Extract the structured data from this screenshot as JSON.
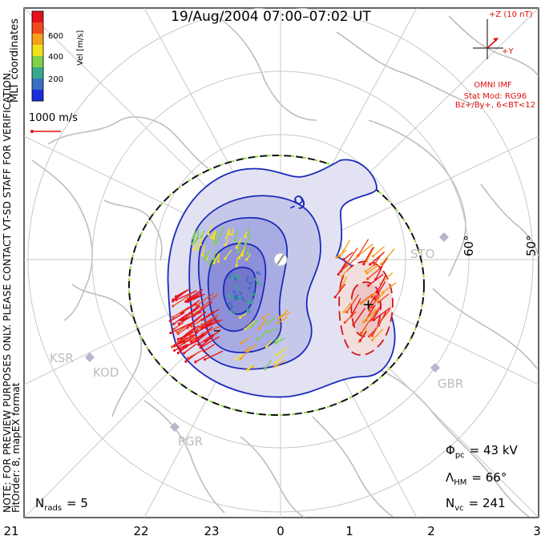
{
  "title": "19/Aug/2004 07:00–07:02 UT",
  "colorbar": {
    "label": "Vel [m/s]",
    "ticks": [
      "600",
      "400",
      "200"
    ],
    "colors": [
      "#e8121c",
      "#f04a1c",
      "#f5a01a",
      "#f2e21b",
      "#7fd14a",
      "#3aa88a",
      "#3a6fc4",
      "#1a2cd8"
    ]
  },
  "coords_label": "MLT coordinates",
  "scale_vector": "1000 m/s",
  "notes": {
    "line1": "NOTE: FOR PREVIEW PURPOSES ONLY. PLEASE CONTACT VT-SD STAFF FOR VERIFICATION.",
    "line2": "FitOrder: 8, mapEX format"
  },
  "imf": {
    "axis_z": "+Z (10 nT)",
    "axis_y": "+Y",
    "source": "OMNI IMF",
    "model": "Stat Mod: RG96",
    "condition": "Bz+/By+, 6<BT<12",
    "color": "#e01010"
  },
  "stations": [
    "STO",
    "KSR",
    "KOD",
    "GBR",
    "PGR"
  ],
  "lat_labels": [
    "60°",
    "50°"
  ],
  "contour_labels": {
    "neg": "-9",
    "neg_sign": "–",
    "pos_sign": "+"
  },
  "stats": {
    "phi_pc_sym": "Φ",
    "phi_pc_sub": "pc",
    "phi_pc_value": "= 43 kV",
    "lambda_hm_sym": "Λ",
    "lambda_hm_sub": "HM",
    "lambda_hm_value": "= 66°",
    "n_vc_sym": "N",
    "n_vc_sub": "vc",
    "n_vc_value": "= 241",
    "n_rads_sym": "N",
    "n_rads_sub": "rads",
    "n_rads_value": "= 5"
  },
  "mlt_ticks": [
    "21",
    "22",
    "23",
    "0",
    "1",
    "2",
    "3"
  ]
}
